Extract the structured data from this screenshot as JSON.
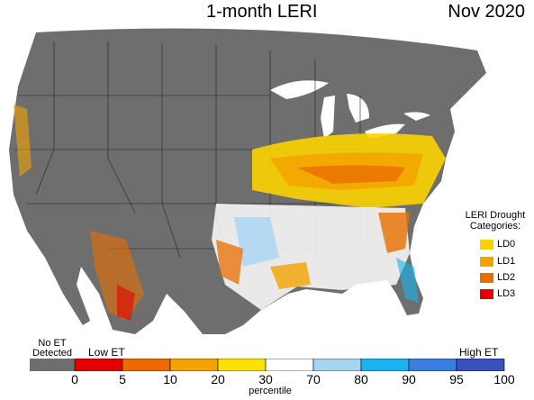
{
  "title": "1-month LERI",
  "date": "Nov 2020",
  "legend": {
    "title_line1": "LERI Drought",
    "title_line2": "Categories:",
    "items": [
      {
        "label": "LD0",
        "color": "#fbd200"
      },
      {
        "label": "LD1",
        "color": "#f4a300"
      },
      {
        "label": "LD2",
        "color": "#e86e00"
      },
      {
        "label": "LD3",
        "color": "#e40000"
      }
    ]
  },
  "colorbar": {
    "no_et_line1": "No ET",
    "no_et_line2": "Detected",
    "low_label": "Low ET",
    "high_label": "High ET",
    "axis_label": "percentile",
    "no_et_color": "#6e6e6e",
    "segments": [
      {
        "color": "#e40000"
      },
      {
        "color": "#ee6a00"
      },
      {
        "color": "#f4a300"
      },
      {
        "color": "#fbe000"
      },
      {
        "color": "#ffffff"
      },
      {
        "color": "#a8d4f4"
      },
      {
        "color": "#19b4f0"
      },
      {
        "color": "#3a7fe0"
      },
      {
        "color": "#3c4fbf"
      }
    ],
    "ticks": [
      "0",
      "5",
      "10",
      "20",
      "30",
      "70",
      "80",
      "90",
      "95",
      "100"
    ]
  }
}
